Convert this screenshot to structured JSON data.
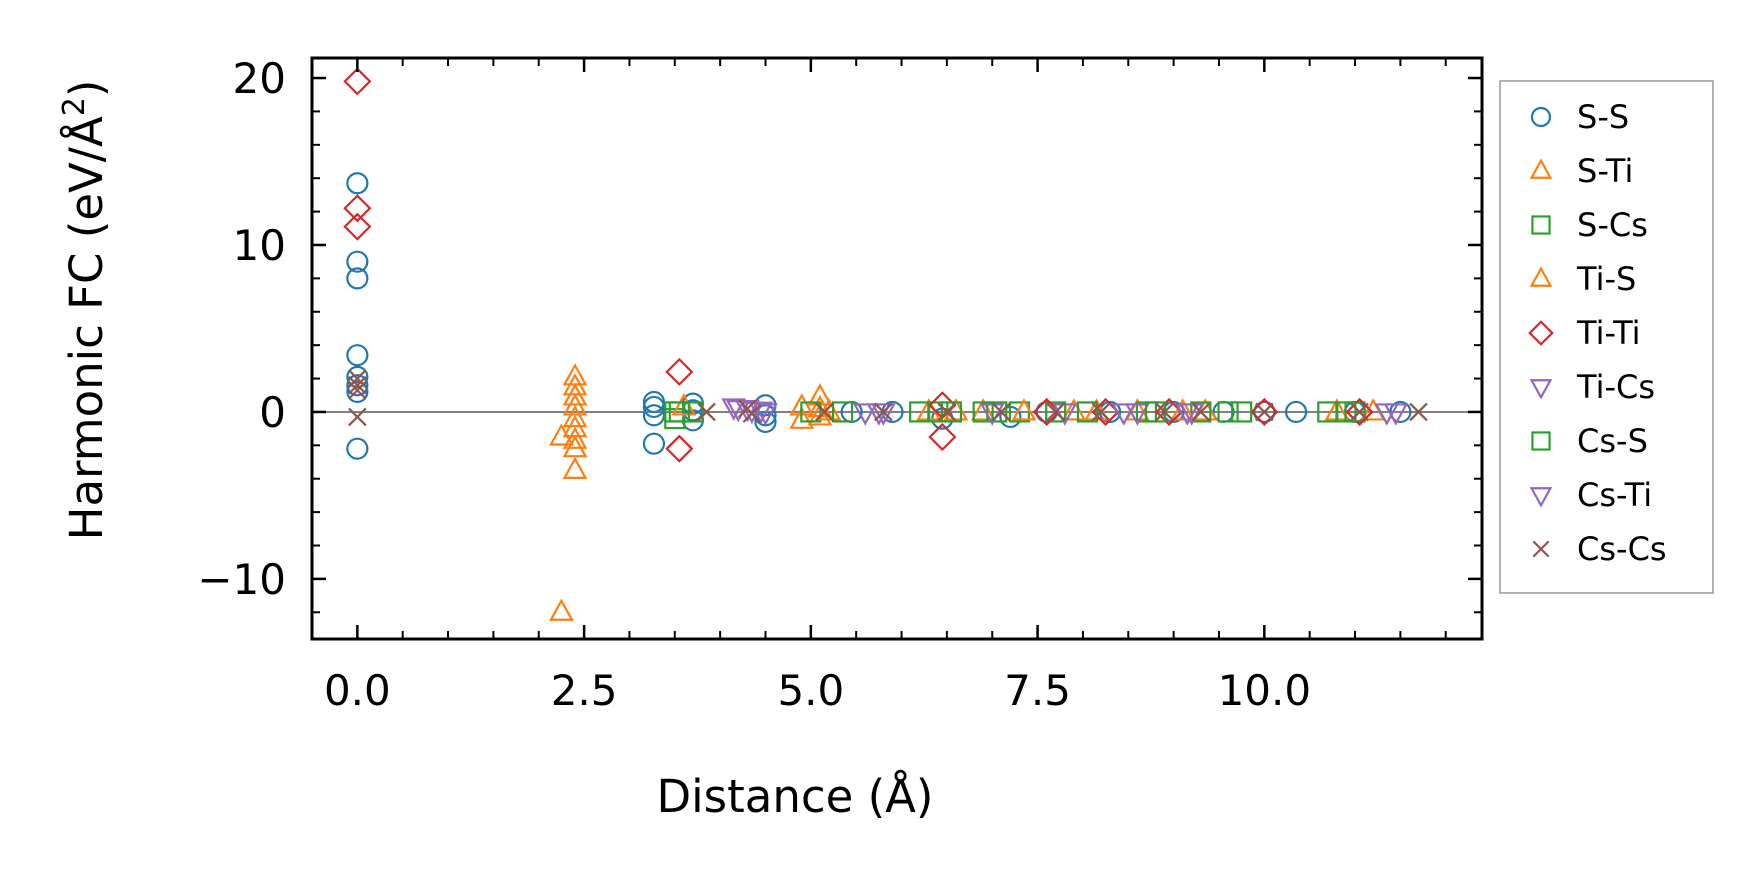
{
  "chart_data": {
    "type": "scatter",
    "title": "",
    "xlabel": "Distance (Å)",
    "ylabel_main": "Harmonic FC (eV/Å",
    "ylabel_sup": "2",
    "ylabel_close": ")",
    "xlim": [
      -0.5,
      12.4
    ],
    "ylim": [
      -13.6,
      21.2
    ],
    "xticks": [
      0.0,
      2.5,
      5.0,
      7.5,
      10.0
    ],
    "xtick_labels": [
      "0.0",
      "2.5",
      "5.0",
      "7.5",
      "10.0"
    ],
    "yticks": [
      -10,
      0,
      10,
      20
    ],
    "ytick_labels": [
      "−10",
      "0",
      "10",
      "20"
    ],
    "zero_line": 0,
    "grid": false,
    "legend_position": "outside-right",
    "series": [
      {
        "name": "S-S",
        "marker": "circle",
        "color": "#1f77b4",
        "points": [
          [
            0,
            13.7
          ],
          [
            0,
            9.0
          ],
          [
            0,
            8.0
          ],
          [
            0,
            3.4
          ],
          [
            0,
            2.1
          ],
          [
            0,
            1.6
          ],
          [
            0,
            1.2
          ],
          [
            0,
            -2.2
          ],
          [
            3.27,
            0.6
          ],
          [
            3.27,
            0.3
          ],
          [
            3.27,
            -0.2
          ],
          [
            3.27,
            -1.9
          ],
          [
            3.7,
            0.5
          ],
          [
            3.7,
            0.1
          ],
          [
            3.7,
            -0.5
          ],
          [
            4.5,
            0.4
          ],
          [
            4.5,
            -0.2
          ],
          [
            4.5,
            -0.6
          ],
          [
            5.45,
            0.0
          ],
          [
            5.9,
            0.0
          ],
          [
            6.45,
            -0.4
          ],
          [
            7.2,
            -0.3
          ],
          [
            7.6,
            0.0
          ],
          [
            8.3,
            0.0
          ],
          [
            9.0,
            0.0
          ],
          [
            9.55,
            0.0
          ],
          [
            10.0,
            0.0
          ],
          [
            10.35,
            0.0
          ],
          [
            11.0,
            0.0
          ],
          [
            11.5,
            0.0
          ]
        ]
      },
      {
        "name": "S-Ti",
        "marker": "triangle-up",
        "color": "#ff7f0e",
        "points": [
          [
            2.25,
            -1.5
          ],
          [
            2.25,
            -12.0
          ],
          [
            2.4,
            2.1
          ],
          [
            2.4,
            1.5
          ],
          [
            2.4,
            0.9
          ],
          [
            2.4,
            0.3
          ],
          [
            2.4,
            -0.4
          ],
          [
            2.4,
            -1.0
          ],
          [
            2.4,
            -1.7
          ],
          [
            2.4,
            -2.2
          ],
          [
            2.4,
            -3.5
          ],
          [
            4.9,
            0.3
          ],
          [
            4.9,
            -0.5
          ],
          [
            5.1,
            0.9
          ],
          [
            5.1,
            0.2
          ],
          [
            5.1,
            -0.3
          ],
          [
            6.3,
            0.0
          ],
          [
            6.9,
            0.0
          ],
          [
            7.9,
            0.0
          ],
          [
            8.6,
            0.0
          ],
          [
            9.35,
            0.0
          ],
          [
            10.8,
            0.0
          ],
          [
            11.2,
            0.0
          ]
        ]
      },
      {
        "name": "S-Cs",
        "marker": "square",
        "color": "#2ca02c",
        "points": [
          [
            3.5,
            0.0
          ],
          [
            3.5,
            -0.4
          ],
          [
            3.7,
            0.0
          ],
          [
            5.0,
            0.0
          ],
          [
            6.2,
            0.0
          ],
          [
            6.4,
            0.0
          ],
          [
            6.9,
            0.0
          ],
          [
            7.3,
            0.0
          ],
          [
            7.7,
            0.0
          ],
          [
            8.7,
            0.0
          ],
          [
            9.3,
            0.0
          ],
          [
            9.6,
            0.0
          ],
          [
            10.7,
            0.0
          ],
          [
            11.0,
            0.0
          ]
        ]
      },
      {
        "name": "Ti-S",
        "marker": "triangle-up",
        "color": "#ff7f0e",
        "points": [
          [
            3.6,
            0.3
          ],
          [
            5.2,
            0.0
          ],
          [
            6.6,
            0.0
          ],
          [
            7.35,
            0.0
          ],
          [
            8.15,
            0.0
          ],
          [
            9.1,
            0.0
          ]
        ]
      },
      {
        "name": "Ti-Ti",
        "marker": "diamond",
        "color": "#d62728",
        "points": [
          [
            0,
            19.8
          ],
          [
            0,
            12.2
          ],
          [
            0,
            11.1
          ],
          [
            3.55,
            2.4
          ],
          [
            3.55,
            -2.2
          ],
          [
            6.45,
            0.4
          ],
          [
            6.45,
            -1.5
          ],
          [
            7.6,
            0.0
          ],
          [
            8.25,
            0.0
          ],
          [
            8.95,
            0.0
          ],
          [
            10.0,
            0.0
          ],
          [
            11.05,
            0.0
          ]
        ]
      },
      {
        "name": "Ti-Cs",
        "marker": "triangle-down",
        "color": "#9467bd",
        "points": [
          [
            4.15,
            0.3
          ],
          [
            4.3,
            0.2
          ],
          [
            4.45,
            0.1
          ],
          [
            5.6,
            0.0
          ],
          [
            5.75,
            0.0
          ],
          [
            7.8,
            0.0
          ],
          [
            8.6,
            0.0
          ],
          [
            9.2,
            0.0
          ],
          [
            11.35,
            0.0
          ]
        ]
      },
      {
        "name": "Cs-S",
        "marker": "square",
        "color": "#2ca02c",
        "points": [
          [
            3.55,
            0.0
          ],
          [
            5.35,
            0.0
          ],
          [
            6.55,
            0.0
          ],
          [
            7.05,
            0.0
          ],
          [
            8.05,
            0.0
          ],
          [
            8.8,
            0.0
          ],
          [
            9.75,
            0.0
          ],
          [
            10.9,
            0.0
          ]
        ]
      },
      {
        "name": "Cs-Ti",
        "marker": "triangle-down",
        "color": "#9467bd",
        "points": [
          [
            4.2,
            0.2
          ],
          [
            4.35,
            0.1
          ],
          [
            4.5,
            0.0
          ],
          [
            5.8,
            0.0
          ],
          [
            7.0,
            0.0
          ],
          [
            8.45,
            0.0
          ],
          [
            9.15,
            0.0
          ],
          [
            11.45,
            0.0
          ]
        ]
      },
      {
        "name": "Cs-Cs",
        "marker": "x",
        "color": "#8c564b",
        "points": [
          [
            0,
            2.0
          ],
          [
            0,
            1.6
          ],
          [
            0,
            1.3
          ],
          [
            0,
            -0.3
          ],
          [
            3.85,
            0.0
          ],
          [
            4.3,
            0.2
          ],
          [
            4.35,
            -0.1
          ],
          [
            5.15,
            0.0
          ],
          [
            5.8,
            0.0
          ],
          [
            6.5,
            0.0
          ],
          [
            7.1,
            0.0
          ],
          [
            7.7,
            0.0
          ],
          [
            8.2,
            0.0
          ],
          [
            8.9,
            0.0
          ],
          [
            9.3,
            0.0
          ],
          [
            10.0,
            0.0
          ],
          [
            11.05,
            0.0
          ],
          [
            11.7,
            0.0
          ]
        ]
      }
    ]
  }
}
